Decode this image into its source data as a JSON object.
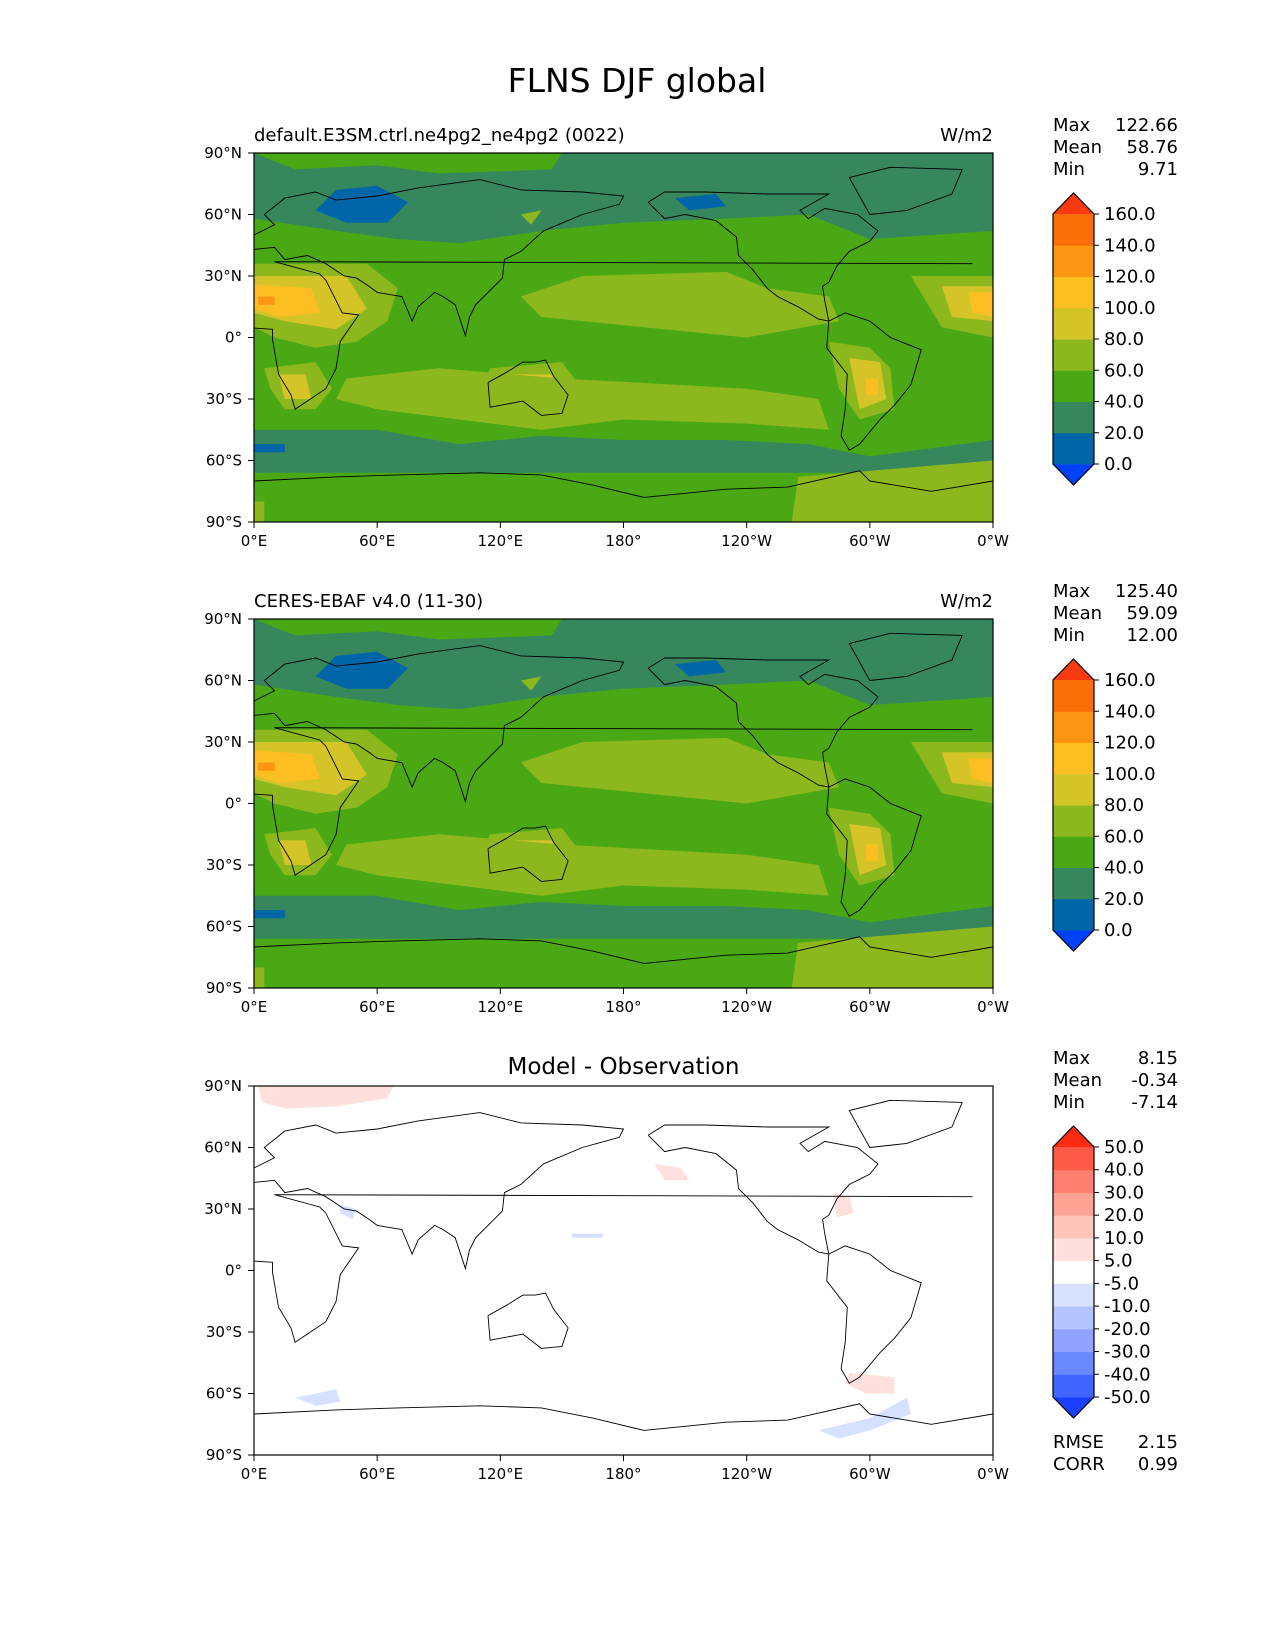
{
  "title": "FLNS DJF global",
  "lon_ticks": [
    "0°E",
    "60°E",
    "120°E",
    "180°",
    "120°W",
    "60°W",
    "0°W"
  ],
  "lat_ticks": [
    "90°N",
    "60°N",
    "30°N",
    "0°",
    "30°S",
    "60°S",
    "90°S"
  ],
  "panels": [
    {
      "label_left": "default.E3SM.ctrl.ne4pg2_ne4pg2 (0022)",
      "label_right": "W/m2",
      "label_center": "",
      "stats": [
        [
          "Max",
          "122.66"
        ],
        [
          "Mean",
          "58.76"
        ],
        [
          "Min",
          "9.71"
        ]
      ],
      "extra_stats": []
    },
    {
      "label_left": "CERES-EBAF v4.0 (11-30)",
      "label_right": "W/m2",
      "label_center": "",
      "stats": [
        [
          "Max",
          "125.40"
        ],
        [
          "Mean",
          "59.09"
        ],
        [
          "Min",
          "12.00"
        ]
      ],
      "extra_stats": []
    },
    {
      "label_left": "",
      "label_right": "",
      "label_center": "Model - Observation",
      "stats": [
        [
          "Max",
          "8.15"
        ],
        [
          "Mean",
          "-0.34"
        ],
        [
          "Min",
          "-7.14"
        ]
      ],
      "extra_stats": [
        [
          "RMSE",
          "2.15"
        ],
        [
          "CORR",
          "0.99"
        ]
      ]
    }
  ],
  "colorbars": {
    "field": {
      "colors": [
        "#0040ff",
        "#0066a8",
        "#36885c",
        "#4aa814",
        "#8cb81e",
        "#d4c428",
        "#fcbe20",
        "#fc9612",
        "#fc6e08",
        "#fc3a10"
      ],
      "labels": [
        "0.0",
        "20.0",
        "40.0",
        "60.0",
        "80.0",
        "100.0",
        "120.0",
        "140.0",
        "160.0"
      ]
    },
    "diff": {
      "colors": [
        "#1a40ff",
        "#4066ff",
        "#6888ff",
        "#90a4ff",
        "#b4c4ff",
        "#d6e0ff",
        "#ffffff",
        "#ffe0dc",
        "#ffc4b8",
        "#ffa294",
        "#ff8070",
        "#ff5a48",
        "#ff2a12"
      ],
      "labels": [
        "-50.0",
        "-40.0",
        "-30.0",
        "-20.0",
        "-10.0",
        "-5.0",
        "5.0",
        "10.0",
        "20.0",
        "30.0",
        "40.0",
        "50.0"
      ]
    }
  },
  "chart_data": [
    {
      "type": "heatmap",
      "map": "filled contour, global equirectangular, coastlines",
      "variable": "FLNS",
      "season": "DJF",
      "units": "W/m2",
      "stats": {
        "max": 122.66,
        "mean": 58.76,
        "min": 9.71
      },
      "levels": [
        0,
        20,
        40,
        60,
        80,
        100,
        120,
        140,
        160
      ],
      "fields": [
        {
          "lon": [
            0,
            15,
            360
          ],
          "lat": [
            -90,
            90
          ],
          "level": 50
        },
        {
          "lon": [
            40,
            60
          ],
          "lat": [
            55,
            72
          ],
          "level": 15
        },
        {
          "lon": [
            0,
            30
          ],
          "lat": [
            5,
            30
          ],
          "level": 110
        },
        {
          "lon": [
            125,
            145
          ],
          "lat": [
            -35,
            -15
          ],
          "level": 95
        },
        {
          "lon": [
            295,
            310
          ],
          "lat": [
            -35,
            -10
          ],
          "level": 90
        },
        {
          "lon": [
            345,
            360
          ],
          "lat": [
            5,
            30
          ],
          "level": 105
        }
      ]
    },
    {
      "type": "heatmap",
      "map": "filled contour, global equirectangular, coastlines",
      "variable": "FLNS",
      "season": "DJF",
      "units": "W/m2",
      "stats": {
        "max": 125.4,
        "mean": 59.09,
        "min": 12.0
      },
      "levels": [
        0,
        20,
        40,
        60,
        80,
        100,
        120,
        140,
        160
      ],
      "fields": []
    },
    {
      "type": "heatmap",
      "map": "filled contour, global equirectangular, coastlines",
      "title": "Model - Observation",
      "stats": {
        "max": 8.15,
        "mean": -0.34,
        "min": -7.14,
        "rmse": 2.15,
        "corr": 0.99
      },
      "levels": [
        -50,
        -40,
        -30,
        -20,
        -10,
        -5,
        5,
        10,
        20,
        30,
        40,
        50
      ]
    }
  ]
}
